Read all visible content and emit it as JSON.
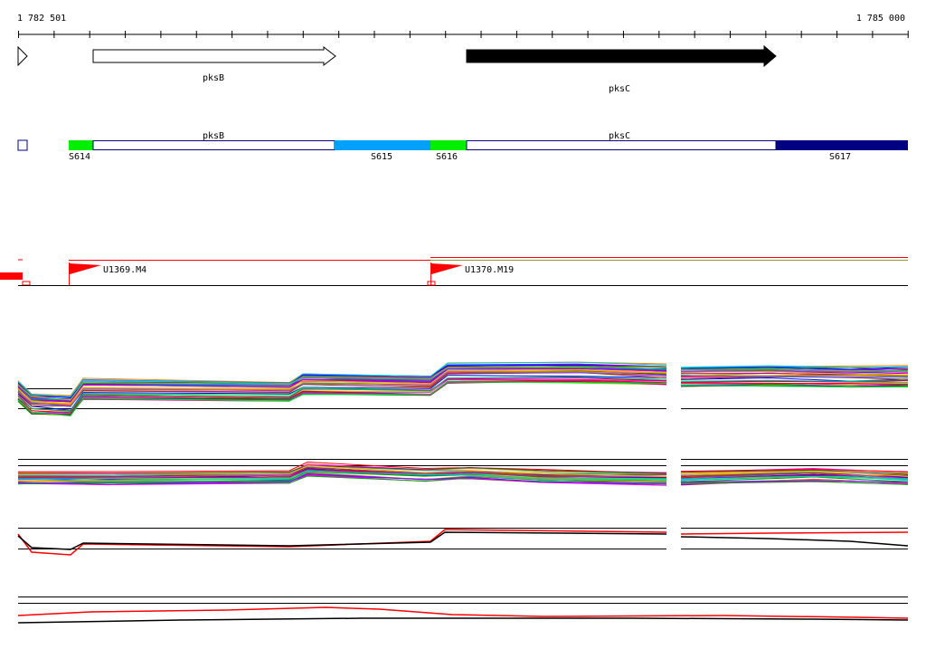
{
  "ruler": {
    "start_label": "1 782 501",
    "end_label": "1 785 000"
  },
  "genes": [
    {
      "name": "pksB",
      "strand": "+",
      "fill": "#ffffff"
    },
    {
      "name": "pksC",
      "strand": "+",
      "fill": "#000000"
    }
  ],
  "segments": [
    {
      "label": "S614",
      "color": "#00ee00"
    },
    {
      "label": "S615",
      "color": "#00a0ff"
    },
    {
      "label": "S616",
      "color": "#00ee00"
    },
    {
      "label": "S617",
      "color": "#000080"
    }
  ],
  "transcription_units": [
    {
      "label": "U1369.M4",
      "color": "#ff0000"
    },
    {
      "label": "U1370.M19",
      "color": "#ff0000"
    }
  ],
  "colors": {
    "ruler": "#000000",
    "gene_outline": "#000000",
    "segment_outline": "#000080",
    "tu_marker": "#ff0000",
    "track_line": "#000000"
  }
}
